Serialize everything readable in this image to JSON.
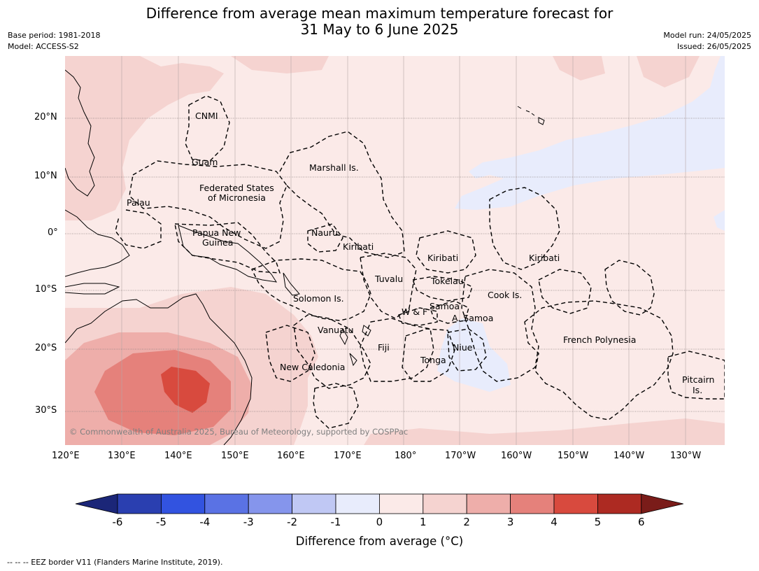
{
  "header": {
    "title_line1": "Difference from average mean maximum temperature forecast for",
    "title_line2": "31 May to 6 June 2025",
    "base_period": "Base period: 1981-2018",
    "model": "Model: ACCESS-S2",
    "model_run": "Model run: 24/05/2025",
    "issued": "Issued: 26/05/2025"
  },
  "map": {
    "lat_labels": [
      "20°N",
      "10°N",
      "0°",
      "10°S",
      "20°S",
      "30°S"
    ],
    "lon_labels": [
      "120°E",
      "130°E",
      "140°E",
      "150°E",
      "160°E",
      "170°E",
      "180°",
      "170°W",
      "160°W",
      "150°W",
      "140°W",
      "130°W"
    ],
    "regions": [
      "CNMI",
      "Guam",
      "Marshall Is.",
      "Federated States",
      "of Micronesia",
      "Palau",
      "Papua New",
      "Guinea",
      "Nauru",
      "Kiribati",
      "Kiribati",
      "Kiribati",
      "Tuvalu",
      "Tokelau",
      "Solomon Is.",
      "Cook Is.",
      "Samoa",
      "W & F",
      "A. Samoa",
      "Vanuatu",
      "Fiji",
      "Niue",
      "French Polynesia",
      "Tonga",
      "New Caledonia",
      "Pitcairn",
      "Is."
    ],
    "copyright": "© Commonwealth of Australia 2025, Bureau of Meteorology, supported by COSPPac"
  },
  "colorbar": {
    "ticks": [
      "-6",
      "-5",
      "-4",
      "-3",
      "-2",
      "-1",
      "0",
      "1",
      "2",
      "3",
      "4",
      "5",
      "6"
    ],
    "colors": [
      "#1b2678",
      "#2a3fb0",
      "#3253e0",
      "#5a72e4",
      "#8595ec",
      "#c0c8f4",
      "#e8ecfc",
      "#fbeae8",
      "#f5d3d0",
      "#eeaeaa",
      "#e5817b",
      "#d84a3e",
      "#ad2a22",
      "#7a1c19"
    ],
    "label": "Difference from average (°C)"
  },
  "footnote": "-- -- -- EEZ border V11 (Flanders Marine Institute, 2019)."
}
